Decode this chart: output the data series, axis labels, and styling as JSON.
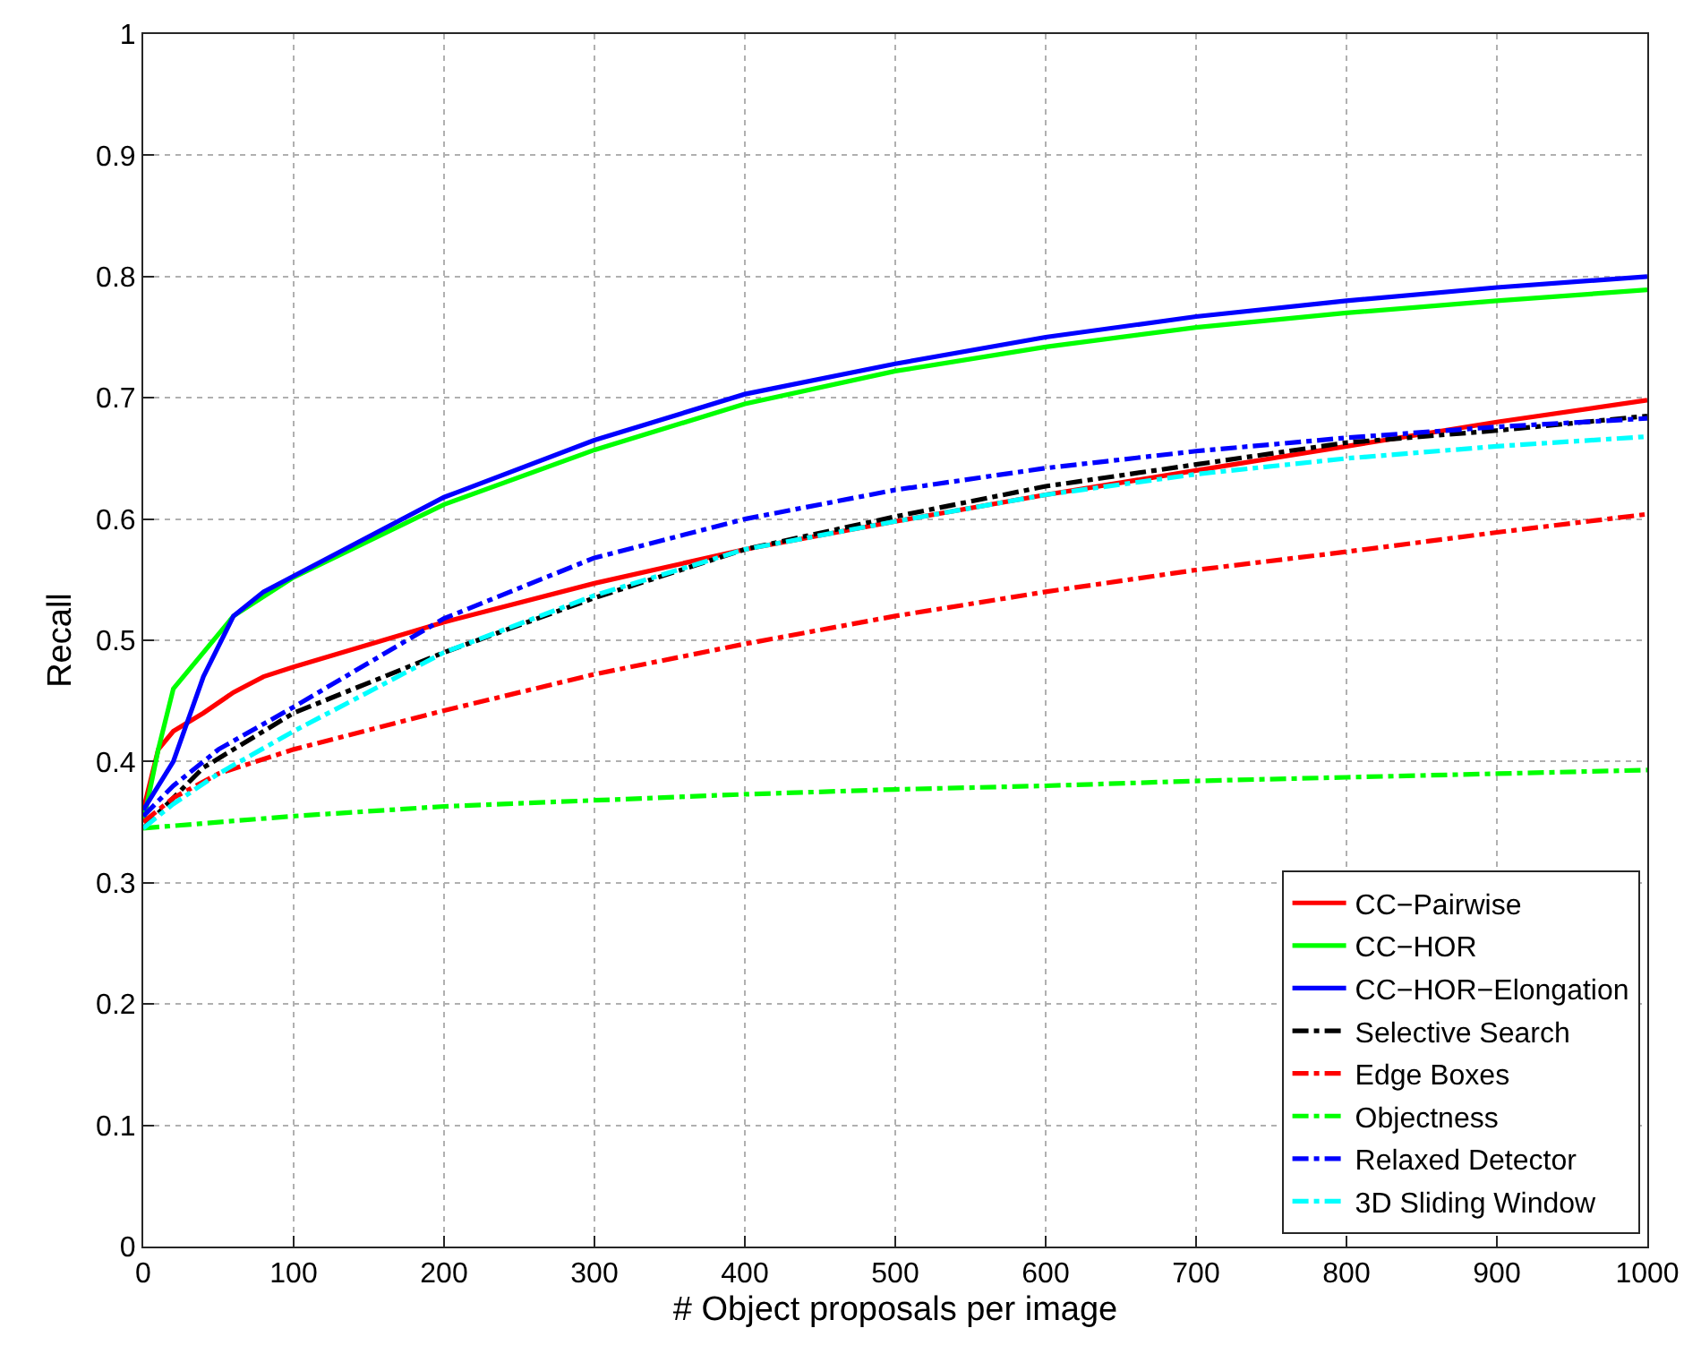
{
  "chart_data": {
    "type": "line",
    "xlabel": "# Object proposals per image",
    "ylabel": "Recall",
    "xlim": [
      0,
      1000
    ],
    "xticks": [
      0,
      100,
      200,
      300,
      400,
      500,
      600,
      700,
      800,
      900,
      1000
    ],
    "ylim": [
      0,
      1
    ],
    "yticks": [
      0,
      0.1,
      0.2,
      0.3,
      0.4,
      0.5,
      0.6,
      0.7,
      0.8,
      0.9,
      1
    ],
    "grid": true,
    "legend": "bottom right",
    "series": [
      {
        "name": "CC−Pairwise",
        "color": "#ff0000",
        "line_style": "solid",
        "x": [
          0,
          10,
          20,
          40,
          60,
          80,
          100,
          200,
          300,
          400,
          500,
          600,
          700,
          800,
          900,
          1000
        ],
        "values": [
          0.36,
          0.41,
          0.425,
          0.44,
          0.457,
          0.47,
          0.478,
          0.515,
          0.547,
          0.575,
          0.598,
          0.62,
          0.64,
          0.66,
          0.68,
          0.698
        ]
      },
      {
        "name": "CC−HOR",
        "color": "#00ff00",
        "line_style": "solid",
        "x": [
          0,
          10,
          20,
          40,
          60,
          100,
          200,
          300,
          400,
          500,
          600,
          700,
          800,
          900,
          1000
        ],
        "values": [
          0.35,
          0.41,
          0.46,
          0.49,
          0.52,
          0.552,
          0.612,
          0.657,
          0.695,
          0.722,
          0.742,
          0.758,
          0.77,
          0.78,
          0.789
        ]
      },
      {
        "name": "CC−HOR−Elongation",
        "color": "#0000ff",
        "line_style": "solid",
        "x": [
          0,
          20,
          40,
          60,
          80,
          100,
          200,
          300,
          400,
          500,
          600,
          700,
          800,
          900,
          1000
        ],
        "values": [
          0.36,
          0.4,
          0.47,
          0.52,
          0.54,
          0.553,
          0.618,
          0.665,
          0.703,
          0.728,
          0.75,
          0.767,
          0.78,
          0.791,
          0.8
        ]
      },
      {
        "name": "Selective Search",
        "color": "#000000",
        "line_style": "dashdot",
        "x": [
          0,
          20,
          40,
          60,
          100,
          200,
          300,
          400,
          500,
          600,
          700,
          800,
          900,
          1000
        ],
        "values": [
          0.345,
          0.37,
          0.395,
          0.41,
          0.44,
          0.49,
          0.535,
          0.575,
          0.602,
          0.627,
          0.645,
          0.663,
          0.673,
          0.685
        ]
      },
      {
        "name": "Edge Boxes",
        "color": "#ff0000",
        "line_style": "dashdot",
        "x": [
          0,
          20,
          50,
          100,
          200,
          300,
          400,
          500,
          600,
          700,
          800,
          900,
          1000
        ],
        "values": [
          0.35,
          0.37,
          0.39,
          0.41,
          0.442,
          0.472,
          0.497,
          0.52,
          0.54,
          0.558,
          0.573,
          0.589,
          0.604
        ]
      },
      {
        "name": "Objectness",
        "color": "#00ff00",
        "line_style": "dashdot",
        "x": [
          0,
          100,
          200,
          300,
          400,
          500,
          600,
          700,
          800,
          900,
          1000
        ],
        "values": [
          0.345,
          0.355,
          0.363,
          0.368,
          0.373,
          0.377,
          0.38,
          0.384,
          0.387,
          0.39,
          0.393
        ]
      },
      {
        "name": "Relaxed Detector",
        "color": "#0000ff",
        "line_style": "dashdot",
        "x": [
          0,
          20,
          50,
          100,
          200,
          300,
          400,
          500,
          600,
          700,
          800,
          900,
          1000
        ],
        "values": [
          0.355,
          0.38,
          0.41,
          0.445,
          0.518,
          0.568,
          0.6,
          0.624,
          0.642,
          0.656,
          0.667,
          0.676,
          0.683
        ]
      },
      {
        "name": "3D Sliding Window",
        "color": "#00ffff",
        "line_style": "dashdot",
        "x": [
          0,
          20,
          50,
          100,
          200,
          300,
          400,
          500,
          600,
          700,
          800,
          900,
          1000
        ],
        "values": [
          0.345,
          0.365,
          0.39,
          0.425,
          0.49,
          0.537,
          0.575,
          0.598,
          0.62,
          0.637,
          0.65,
          0.66,
          0.668
        ]
      }
    ]
  }
}
